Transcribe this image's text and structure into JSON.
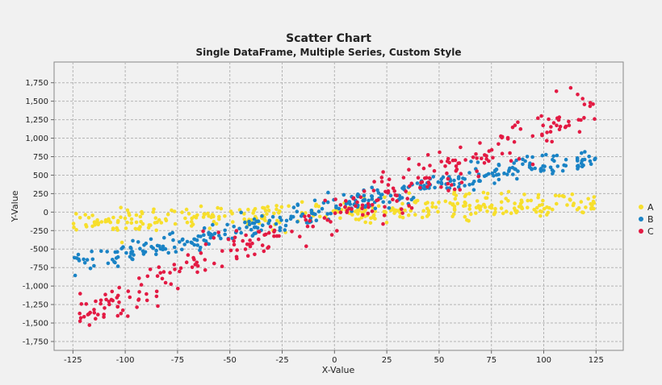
{
  "chart_data": {
    "type": "scatter",
    "title": "Scatter Chart",
    "subtitle": "Single DataFrame, Multiple Series, Custom Style",
    "xlabel": "X-Value",
    "ylabel": "Y-Value",
    "xlim": [
      -134,
      138
    ],
    "ylim": [
      -1870,
      2030
    ],
    "x_ticks": [
      -125,
      -100,
      -75,
      -50,
      -25,
      0,
      25,
      50,
      75,
      100,
      125
    ],
    "x_tick_labels": [
      "-125",
      "-100",
      "-75",
      "-50",
      "-25",
      "0",
      "25",
      "50",
      "75",
      "100",
      "125"
    ],
    "y_ticks": [
      -1750,
      -1500,
      -1250,
      -1000,
      -750,
      -500,
      -250,
      0,
      250,
      500,
      750,
      1000,
      1250,
      1500,
      1750
    ],
    "y_tick_labels": [
      "-1,750",
      "-1,500",
      "-1,250",
      "-1,000",
      "-750",
      "-500",
      "-250",
      "0",
      "250",
      "500",
      "750",
      "1,000",
      "1,250",
      "1,500",
      "1,750"
    ],
    "grid": true,
    "legend_position": "right",
    "series": [
      {
        "name": "A",
        "color": "#f7df2c",
        "trend": {
          "x": [
            -125,
            0,
            125
          ],
          "y": [
            -150,
            0,
            130
          ]
        },
        "spread": 85,
        "approx_points": 360
      },
      {
        "name": "B",
        "color": "#1a83c5",
        "trend": {
          "x": [
            -125,
            -75,
            0,
            60,
            125
          ],
          "y": [
            -700,
            -420,
            60,
            450,
            720
          ]
        },
        "spread": 75,
        "approx_points": 360
      },
      {
        "name": "C",
        "color": "#e31a43",
        "trend": {
          "x": [
            -125,
            -100,
            -75,
            -50,
            -25,
            0,
            25,
            50,
            75,
            100,
            125
          ],
          "y": [
            -1450,
            -1200,
            -800,
            -480,
            -300,
            0,
            250,
            500,
            780,
            1100,
            1500
          ]
        },
        "spread": 150,
        "approx_points": 300
      }
    ]
  }
}
